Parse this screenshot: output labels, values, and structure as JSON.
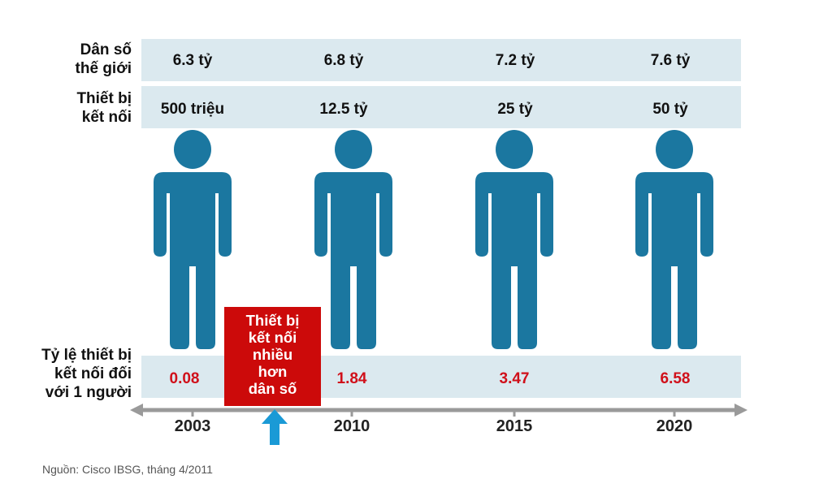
{
  "labels": {
    "population": [
      "Dân số",
      "thế giới"
    ],
    "devices": [
      "Thiết bị",
      "kết nối"
    ],
    "ratio": [
      "Tỷ lệ thiết bị",
      "kết nối đối",
      "với 1 người"
    ]
  },
  "columns": [
    {
      "year": "2003",
      "population": "6.3 tỷ",
      "devices": "500 triệu",
      "ratio": "0.08"
    },
    {
      "year": "2010",
      "population": "6.8 tỷ",
      "devices": "12.5 tỷ",
      "ratio": "1.84"
    },
    {
      "year": "2015",
      "population": "7.2 tỷ",
      "devices": "25 tỷ",
      "ratio": "3.47"
    },
    {
      "year": "2020",
      "population": "7.6 tỷ",
      "devices": "50 tỷ",
      "ratio": "6.58"
    }
  ],
  "callout": [
    "Thiết bị",
    "kết nối",
    "nhiều",
    "hơn",
    "dân số"
  ],
  "source": "Nguồn: Cisco IBSG, tháng 4/2011",
  "colors": {
    "person": "#1b77a0",
    "band": "#dbe9ef",
    "ratio_text": "#d0101a",
    "callout_bg": "#cc0a0a",
    "arrow": "#1a9ad6",
    "timeline": "#9a9a9a"
  }
}
